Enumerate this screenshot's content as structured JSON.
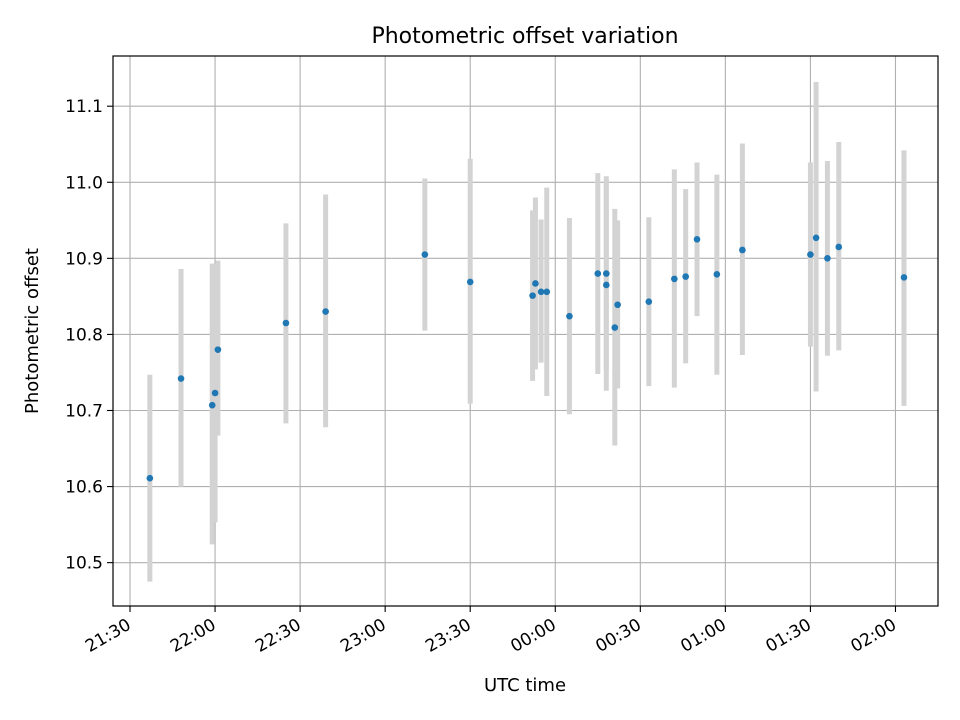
{
  "chart_data": {
    "type": "scatter",
    "title": "Photometric offset variation",
    "xlabel": "UTC time",
    "ylabel": "Photometric offset",
    "x_axis_kind": "time",
    "x_start_date": "2023-01-01",
    "xlim": [
      "21:24",
      "02:15"
    ],
    "ylim": [
      10.443,
      11.166
    ],
    "xticks": [
      "21:30",
      "22:00",
      "22:30",
      "23:00",
      "23:30",
      "00:00",
      "00:30",
      "01:00",
      "01:30",
      "02:00"
    ],
    "yticks": [
      10.5,
      10.6,
      10.7,
      10.8,
      10.9,
      11.0,
      11.1
    ],
    "ytick_labels": [
      "10.5",
      "10.6",
      "10.7",
      "10.8",
      "10.9",
      "11.0",
      "11.1"
    ],
    "grid": true,
    "colors": {
      "point": "#1f77b4",
      "errorbar": "#d3d3d3",
      "grid": "#b0b0b0"
    },
    "points": [
      {
        "time": "21:37",
        "y": 10.611,
        "err_low": 10.475,
        "err_high": 10.747
      },
      {
        "time": "21:48",
        "y": 10.742,
        "err_low": 10.6,
        "err_high": 10.886
      },
      {
        "time": "21:59",
        "y": 10.707,
        "err_low": 10.524,
        "err_high": 10.893
      },
      {
        "time": "22:00",
        "y": 10.723,
        "err_low": 10.553,
        "err_high": 10.893
      },
      {
        "time": "22:01",
        "y": 10.78,
        "err_low": 10.667,
        "err_high": 10.897
      },
      {
        "time": "22:25",
        "y": 10.815,
        "err_low": 10.683,
        "err_high": 10.946
      },
      {
        "time": "22:39",
        "y": 10.83,
        "err_low": 10.678,
        "err_high": 10.984
      },
      {
        "time": "23:14",
        "y": 10.905,
        "err_low": 10.805,
        "err_high": 11.005
      },
      {
        "time": "23:30",
        "y": 10.869,
        "err_low": 10.709,
        "err_high": 11.031
      },
      {
        "time": "23:52",
        "y": 10.851,
        "err_low": 10.739,
        "err_high": 10.963
      },
      {
        "time": "23:53",
        "y": 10.867,
        "err_low": 10.754,
        "err_high": 10.98
      },
      {
        "time": "23:55",
        "y": 10.856,
        "err_low": 10.763,
        "err_high": 10.951
      },
      {
        "time": "23:57",
        "y": 10.856,
        "err_low": 10.719,
        "err_high": 10.993
      },
      {
        "time": "00:05",
        "y": 10.824,
        "err_low": 10.695,
        "err_high": 10.953
      },
      {
        "time": "00:15",
        "y": 10.88,
        "err_low": 10.748,
        "err_high": 11.012
      },
      {
        "time": "00:18",
        "y": 10.88,
        "err_low": 10.753,
        "err_high": 11.008
      },
      {
        "time": "00:18",
        "y": 10.865,
        "err_low": 10.726,
        "err_high": 11.004
      },
      {
        "time": "00:21",
        "y": 10.809,
        "err_low": 10.654,
        "err_high": 10.965
      },
      {
        "time": "00:22",
        "y": 10.839,
        "err_low": 10.729,
        "err_high": 10.95
      },
      {
        "time": "00:33",
        "y": 10.843,
        "err_low": 10.732,
        "err_high": 10.954
      },
      {
        "time": "00:42",
        "y": 10.873,
        "err_low": 10.73,
        "err_high": 11.017
      },
      {
        "time": "00:46",
        "y": 10.876,
        "err_low": 10.762,
        "err_high": 10.991
      },
      {
        "time": "00:50",
        "y": 10.925,
        "err_low": 10.824,
        "err_high": 11.026
      },
      {
        "time": "00:57",
        "y": 10.879,
        "err_low": 10.747,
        "err_high": 11.01
      },
      {
        "time": "01:06",
        "y": 10.911,
        "err_low": 10.773,
        "err_high": 11.051
      },
      {
        "time": "01:30",
        "y": 10.905,
        "err_low": 10.784,
        "err_high": 11.026
      },
      {
        "time": "01:32",
        "y": 10.927,
        "err_low": 10.725,
        "err_high": 11.132
      },
      {
        "time": "01:36",
        "y": 10.9,
        "err_low": 10.772,
        "err_high": 11.028
      },
      {
        "time": "01:40",
        "y": 10.915,
        "err_low": 10.779,
        "err_high": 11.053
      },
      {
        "time": "02:03",
        "y": 10.875,
        "err_low": 10.706,
        "err_high": 11.042
      }
    ]
  }
}
